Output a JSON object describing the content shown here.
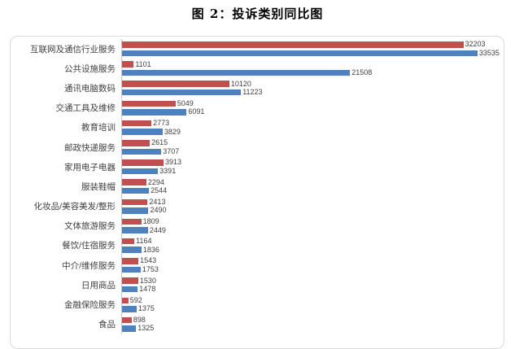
{
  "title": "图 2：投诉类别同比图",
  "colors": {
    "red_series": "#c0504d",
    "blue_series": "#4f81bd",
    "frame_border": "#d9d9d9",
    "axis_line": "#c6c6c6",
    "label_text": "#404040"
  },
  "chart_data": {
    "type": "bar",
    "orientation": "horizontal",
    "title": "图 2：投诉类别同比图",
    "xlabel": "",
    "ylabel": "",
    "xlim": [
      0,
      36000
    ],
    "grid": false,
    "legend_position": "none",
    "categories": [
      "互联网及通信行业服务",
      "公共设施服务",
      "通讯电脑数码",
      "交通工具及维修",
      "教育培训",
      "邮政快递服务",
      "家用电子电器",
      "服装鞋帽",
      "化妆品/美容美发/整形",
      "文体旅游服务",
      "餐饮/住宿服务",
      "中介/维修服务",
      "日用商品",
      "金融保险服务",
      "食品"
    ],
    "series": [
      {
        "name": "red-series",
        "color": "#c0504d",
        "values": [
          32203,
          1101,
          10120,
          5049,
          2773,
          2615,
          3913,
          2294,
          2413,
          1809,
          1164,
          1543,
          1530,
          592,
          898
        ]
      },
      {
        "name": "blue-series",
        "color": "#4f81bd",
        "values": [
          33535,
          21508,
          11223,
          6091,
          3829,
          3707,
          3391,
          2544,
          2490,
          2449,
          1836,
          1753,
          1478,
          1375,
          1325
        ]
      }
    ]
  }
}
